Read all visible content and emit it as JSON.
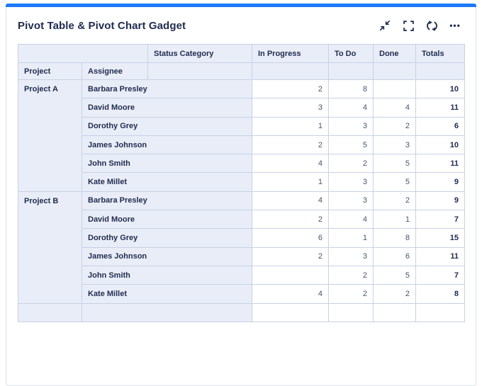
{
  "card": {
    "title": "Pivot Table & Pivot Chart Gadget",
    "accent_color": "#1d7afc",
    "toolbar": {
      "minimize_icon": "collapse-diagonal-arrows",
      "fullscreen_icon": "corner-brackets",
      "refresh_icon": "circular-arrows",
      "more_icon": "ellipsis",
      "more_glyph": "•••"
    }
  },
  "colors": {
    "accent": "#1d7afc",
    "heading_text": "#1f2b4e",
    "value_text": "#47556f",
    "cell_border": "#c7d1e5",
    "header_bg": "#e9edf8"
  },
  "table": {
    "header": {
      "status_category": "Status Category",
      "project": "Project",
      "assignee": "Assignee",
      "metrics": [
        "In Progress",
        "To Do",
        "Done",
        "Totals"
      ]
    },
    "groups": [
      {
        "project": "Project A",
        "rows": [
          {
            "assignee": "Barbara Presley",
            "values": [
              "2",
              "8",
              "",
              "10"
            ]
          },
          {
            "assignee": "David Moore",
            "values": [
              "3",
              "4",
              "4",
              "11"
            ]
          },
          {
            "assignee": "Dorothy Grey",
            "values": [
              "1",
              "3",
              "2",
              "6"
            ]
          },
          {
            "assignee": "James Johnson",
            "values": [
              "2",
              "5",
              "3",
              "10"
            ]
          },
          {
            "assignee": "John Smith",
            "values": [
              "4",
              "2",
              "5",
              "11"
            ]
          },
          {
            "assignee": "Kate Millet",
            "values": [
              "1",
              "3",
              "5",
              "9"
            ]
          }
        ]
      },
      {
        "project": "Project B",
        "rows": [
          {
            "assignee": "Barbara Presley",
            "values": [
              "4",
              "3",
              "2",
              "9"
            ]
          },
          {
            "assignee": "David Moore",
            "values": [
              "2",
              "4",
              "1",
              "7"
            ]
          },
          {
            "assignee": "Dorothy Grey",
            "values": [
              "6",
              "1",
              "8",
              "15"
            ]
          },
          {
            "assignee": "James Johnson",
            "values": [
              "2",
              "3",
              "6",
              "11"
            ]
          },
          {
            "assignee": "John Smith",
            "values": [
              "",
              "2",
              "5",
              "7"
            ]
          },
          {
            "assignee": "Kate Millet",
            "values": [
              "4",
              "2",
              "2",
              "8"
            ]
          }
        ]
      }
    ],
    "partial_row": {
      "project": "",
      "assignee": "",
      "values": [
        "",
        "",
        "",
        ""
      ]
    }
  }
}
